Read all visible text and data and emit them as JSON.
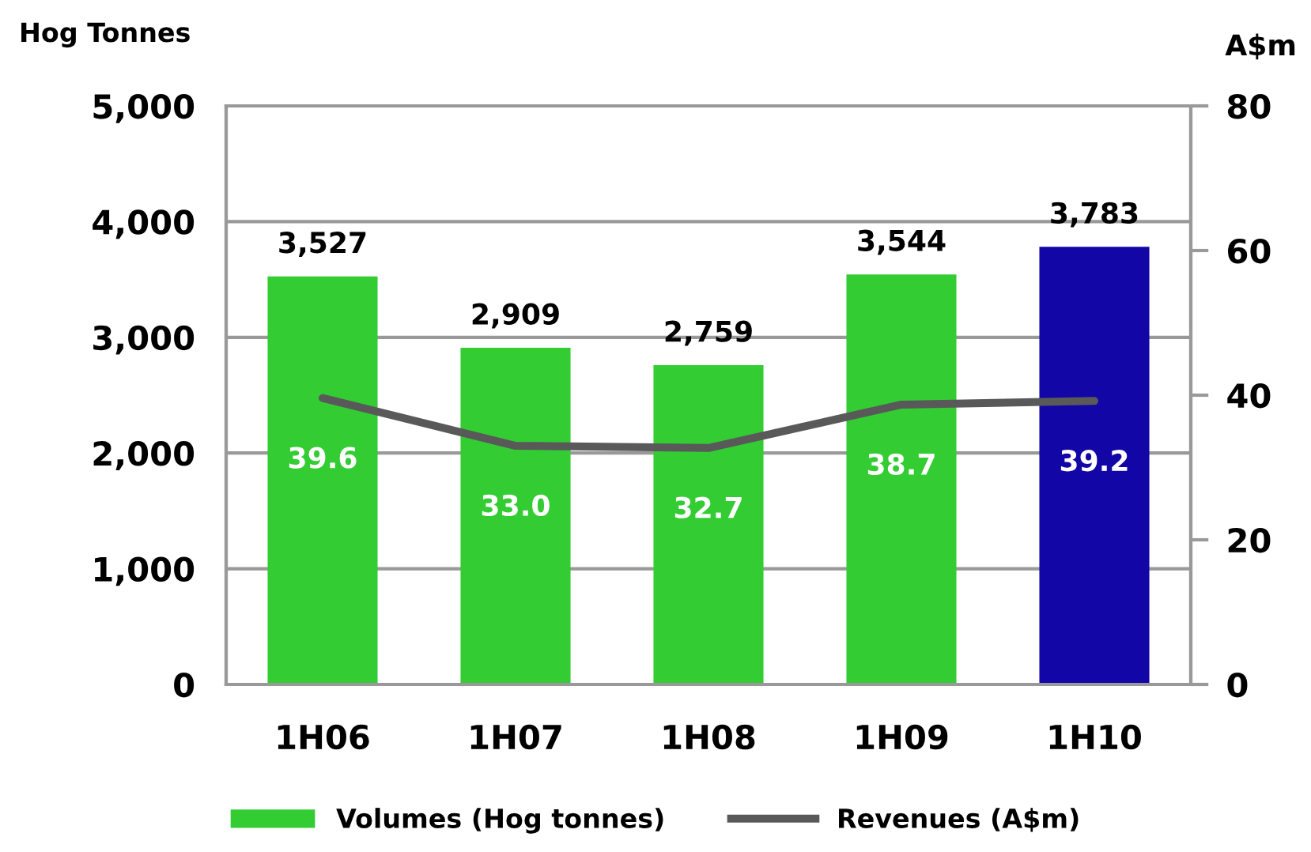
{
  "chart_data": {
    "type": "bar",
    "categories": [
      "1H06",
      "1H07",
      "1H08",
      "1H09",
      "1H10"
    ],
    "ylabel": "Hog Tonnes",
    "y2label": "A$m",
    "ylim": [
      0,
      5000
    ],
    "yticks": [
      0,
      {
        "value": 1000,
        "label": "1,000"
      },
      {
        "value": 2000,
        "label": "2,000"
      },
      {
        "value": 3000,
        "label": "3,000"
      },
      {
        "value": 4000,
        "label": "4,000"
      },
      {
        "value": 5000,
        "label": "5,000"
      }
    ],
    "y2lim": [
      0,
      80
    ],
    "y2ticks": [
      0,
      20,
      40,
      60,
      80
    ],
    "series": [
      {
        "name": "Volumes (Hog tonnes)",
        "color": "#33cc33",
        "colors": [
          "#33cc33",
          "#33cc33",
          "#33cc33",
          "#33cc33",
          "#1206a6"
        ],
        "values": [
          3527,
          2909,
          2759,
          3544,
          3783
        ],
        "value_labels": [
          "3,527",
          "2,909",
          "2,759",
          "3,544",
          "3,783"
        ]
      },
      {
        "name": "Revenues (A$m)",
        "type": "line",
        "axis": "y2",
        "color": "#595959",
        "values": [
          39.6,
          33.0,
          32.7,
          38.7,
          39.2
        ],
        "value_labels": [
          "39.6",
          "33.0",
          "32.7",
          "38.7",
          "39.2"
        ]
      }
    ],
    "grid": "y",
    "legend": "bottom",
    "marker": "none",
    "line_style": "solid"
  }
}
